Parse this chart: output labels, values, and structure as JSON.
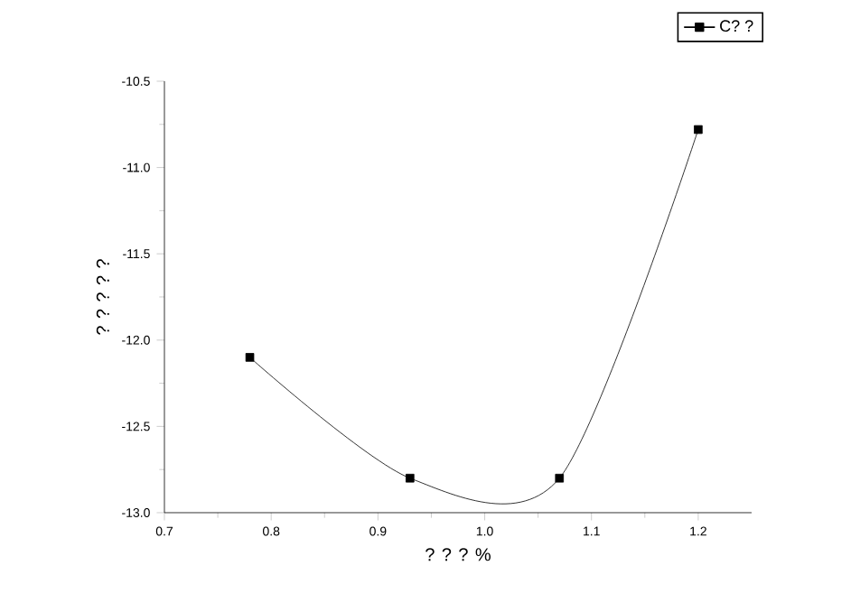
{
  "chart_data": {
    "type": "line",
    "xlabel": "? ? ? %",
    "ylabel": "? ? ? ? ?",
    "x": [
      0.78,
      0.93,
      1.07,
      1.2
    ],
    "series": [
      {
        "name": "C? ?",
        "color": "#000000",
        "values": [
          -12.1,
          -12.8,
          -12.8,
          -10.78
        ]
      }
    ],
    "xlim": [
      0.7,
      1.25
    ],
    "ylim": [
      -13.0,
      -10.5
    ],
    "xticks": [
      0.7,
      0.8,
      0.9,
      {
        "value": 1,
        "label": "1.0"
      },
      1.1,
      1.2
    ],
    "yticks": [
      {
        "value": -13,
        "label": "-13.0"
      },
      -12.5,
      {
        "value": -12,
        "label": "-12.0"
      },
      -11.5,
      {
        "value": -11,
        "label": "-11.0"
      },
      -10.5
    ],
    "legend": "top right",
    "marker": "square",
    "line_style": "solid",
    "grid": false
  }
}
